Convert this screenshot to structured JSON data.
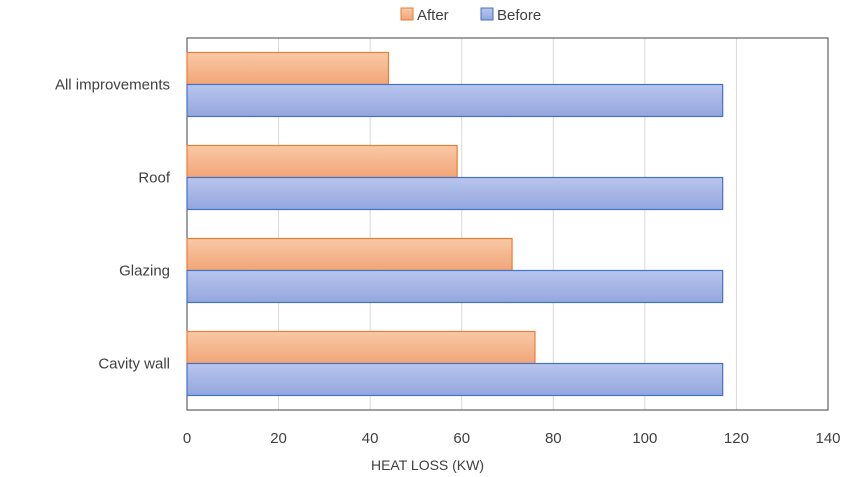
{
  "chart_data": {
    "type": "bar",
    "orientation": "horizontal",
    "title": "",
    "xlabel": "HEAT LOSS (KW)",
    "ylabel": "",
    "categories": [
      "All improvements",
      "Roof",
      "Glazing",
      "Cavity wall"
    ],
    "series": [
      {
        "name": "After",
        "values": [
          44,
          59,
          71,
          76
        ],
        "color": "#F4B183",
        "border": "#ED7D31"
      },
      {
        "name": "Before",
        "values": [
          117,
          117,
          117,
          117
        ],
        "color": "#A9B7E6",
        "border": "#4472C4"
      }
    ],
    "xlim": [
      0,
      140
    ],
    "xticks": [
      0,
      20,
      40,
      60,
      80,
      100,
      120,
      140
    ],
    "grid": true,
    "legend_position": "top"
  }
}
